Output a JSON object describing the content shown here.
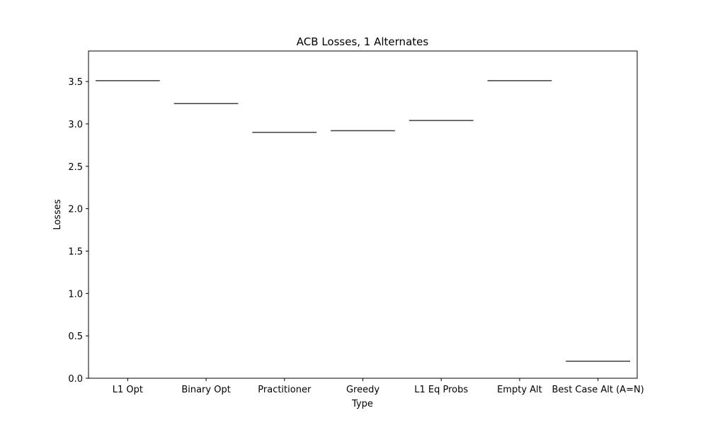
{
  "chart_data": {
    "type": "bar",
    "title": "ACB Losses, 1 Alternates",
    "xlabel": "Type",
    "ylabel": "Losses",
    "categories": [
      "L1 Opt",
      "Binary Opt",
      "Practitioner",
      "Greedy",
      "L1 Eq Probs",
      "Empty Alt",
      "Best Case Alt (A=N)"
    ],
    "values": [
      3.51,
      3.24,
      2.9,
      2.92,
      3.04,
      3.51,
      0.2
    ],
    "ylim": [
      0,
      3.86
    ],
    "yticks": [
      "0.0",
      "0.5",
      "1.0",
      "1.5",
      "2.0",
      "2.5",
      "3.0",
      "3.5"
    ],
    "grid": false,
    "mark_style": "horizontal line segment per category",
    "colors": {
      "mark": "#3f3f3f",
      "axes": "#000000",
      "background": "#ffffff"
    }
  }
}
